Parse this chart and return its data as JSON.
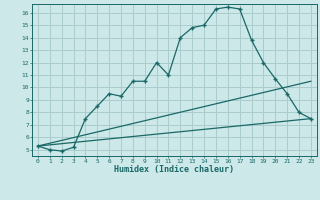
{
  "xlabel": "Humidex (Indice chaleur)",
  "bg_color": "#cce8e8",
  "grid_color": "#aacccc",
  "line_color": "#1a6868",
  "xlim": [
    -0.5,
    23.5
  ],
  "ylim": [
    4.5,
    16.7
  ],
  "xticks": [
    0,
    1,
    2,
    3,
    4,
    5,
    6,
    7,
    8,
    9,
    10,
    11,
    12,
    13,
    14,
    15,
    16,
    17,
    18,
    19,
    20,
    21,
    22,
    23
  ],
  "yticks": [
    5,
    6,
    7,
    8,
    9,
    10,
    11,
    12,
    13,
    14,
    15,
    16
  ],
  "line1_x": [
    0,
    1,
    2,
    3,
    4,
    5,
    6,
    7,
    8,
    9,
    10,
    11,
    12,
    13,
    14,
    15,
    16,
    17,
    18,
    19,
    20,
    21,
    22,
    23
  ],
  "line1_y": [
    5.3,
    5.0,
    4.9,
    5.2,
    7.5,
    8.5,
    9.5,
    9.3,
    10.5,
    10.5,
    12.0,
    11.0,
    14.0,
    14.8,
    15.0,
    16.3,
    16.45,
    16.3,
    13.8,
    12.0,
    10.7,
    9.5,
    8.0,
    7.5
  ],
  "line2_x": [
    0,
    23
  ],
  "line2_y": [
    5.3,
    10.5
  ],
  "line3_x": [
    0,
    23
  ],
  "line3_y": [
    5.3,
    7.5
  ]
}
